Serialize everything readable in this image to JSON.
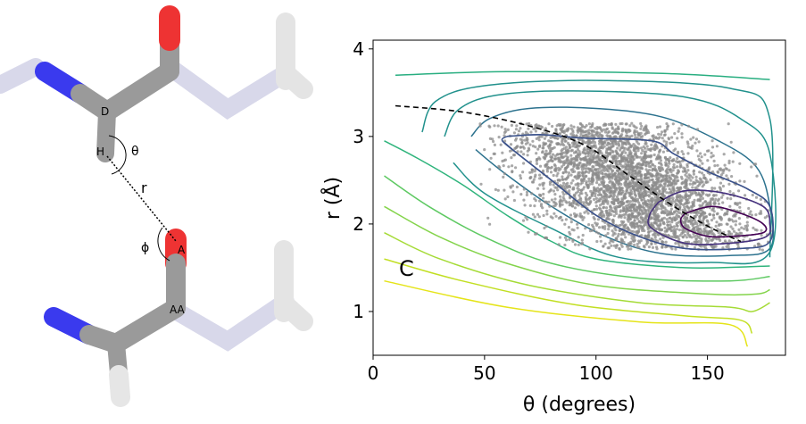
{
  "molecule": {
    "atom_labels": [
      "D",
      "H",
      "A",
      "AA"
    ],
    "geometry_labels": {
      "theta": "θ",
      "phi": "ϕ",
      "r": "r"
    },
    "colors": {
      "carbon": "#9a9a9a",
      "nitrogen": "#3a3aee",
      "oxygen": "#ee3333",
      "hydrogen": "#e6e6e6",
      "bond_faded": "#d8d8ea"
    }
  },
  "chart_data": {
    "type": "contour",
    "xlabel": "θ (degrees)",
    "ylabel": "r (Å)",
    "xlim": [
      0,
      185
    ],
    "ylim": [
      0.5,
      4.1
    ],
    "xticks": [
      0,
      50,
      100,
      150
    ],
    "yticks": [
      1,
      2,
      3,
      4
    ],
    "grid": false,
    "colormap": "viridis",
    "annotation": "C",
    "contour_levels": [
      {
        "color": "#440154",
        "points": [
          [
            140,
            2.12
          ],
          [
            152,
            2.2
          ],
          [
            165,
            2.12
          ],
          [
            175,
            2.0
          ],
          [
            175,
            1.9
          ],
          [
            162,
            1.86
          ],
          [
            150,
            1.86
          ],
          [
            140,
            1.95
          ],
          [
            138,
            2.05
          ]
        ]
      },
      {
        "color": "#46327e",
        "points": [
          [
            128,
            2.25
          ],
          [
            140,
            2.38
          ],
          [
            158,
            2.35
          ],
          [
            175,
            2.2
          ],
          [
            178,
            2.0
          ],
          [
            176,
            1.85
          ],
          [
            160,
            1.78
          ],
          [
            140,
            1.78
          ],
          [
            125,
            1.95
          ],
          [
            124,
            2.1
          ]
        ]
      },
      {
        "color": "#3b528b",
        "points": [
          [
            60,
            3.0
          ],
          [
            75,
            3.02
          ],
          [
            95,
            2.98
          ],
          [
            125,
            2.95
          ],
          [
            135,
            2.8
          ],
          [
            150,
            2.6
          ],
          [
            168,
            2.4
          ],
          [
            178,
            2.2
          ],
          [
            178,
            1.8
          ],
          [
            165,
            1.72
          ],
          [
            140,
            1.72
          ],
          [
            120,
            1.85
          ],
          [
            100,
            2.1
          ],
          [
            80,
            2.5
          ],
          [
            65,
            2.8
          ],
          [
            58,
            2.95
          ]
        ]
      },
      {
        "color": "#2c728e",
        "points": [
          [
            44,
            3.0
          ],
          [
            52,
            3.2
          ],
          [
            70,
            3.32
          ],
          [
            100,
            3.32
          ],
          [
            130,
            3.22
          ],
          [
            155,
            2.95
          ],
          [
            172,
            2.65
          ],
          [
            178,
            2.2
          ],
          [
            178,
            1.72
          ],
          [
            160,
            1.64
          ],
          [
            130,
            1.66
          ],
          [
            105,
            1.85
          ],
          [
            80,
            2.2
          ],
          [
            58,
            2.6
          ],
          [
            46,
            2.85
          ]
        ]
      },
      {
        "color": "#21918c",
        "points": [
          [
            32,
            3.0
          ],
          [
            38,
            3.3
          ],
          [
            55,
            3.47
          ],
          [
            90,
            3.52
          ],
          [
            140,
            3.45
          ],
          [
            165,
            3.2
          ],
          [
            178,
            2.8
          ],
          [
            178,
            1.68
          ],
          [
            150,
            1.56
          ],
          [
            110,
            1.62
          ],
          [
            80,
            1.95
          ],
          [
            50,
            2.35
          ],
          [
            36,
            2.7
          ]
        ]
      },
      {
        "color": "#21918c",
        "points": [
          [
            22,
            3.05
          ],
          [
            28,
            3.4
          ],
          [
            50,
            3.58
          ],
          [
            100,
            3.64
          ],
          [
            160,
            3.55
          ],
          [
            178,
            3.2
          ],
          [
            178,
            1.62
          ]
        ]
      },
      {
        "color": "#28ae80",
        "points": [
          [
            10,
            3.7
          ],
          [
            60,
            3.74
          ],
          [
            130,
            3.72
          ],
          [
            178,
            3.65
          ]
        ]
      },
      {
        "color": "#2fb47c",
        "points": [
          [
            5,
            2.95
          ],
          [
            20,
            2.75
          ],
          [
            40,
            2.45
          ],
          [
            60,
            2.1
          ],
          [
            80,
            1.8
          ],
          [
            100,
            1.6
          ],
          [
            140,
            1.5
          ],
          [
            178,
            1.52
          ]
        ]
      },
      {
        "color": "#5ec962",
        "points": [
          [
            5,
            2.55
          ],
          [
            25,
            2.2
          ],
          [
            50,
            1.85
          ],
          [
            80,
            1.55
          ],
          [
            120,
            1.38
          ],
          [
            160,
            1.35
          ],
          [
            178,
            1.4
          ]
        ]
      },
      {
        "color": "#84d44b",
        "points": [
          [
            5,
            2.2
          ],
          [
            30,
            1.85
          ],
          [
            60,
            1.55
          ],
          [
            100,
            1.3
          ],
          [
            150,
            1.2
          ],
          [
            172,
            1.2
          ],
          [
            178,
            1.25
          ]
        ]
      },
      {
        "color": "#a5db36",
        "points": [
          [
            5,
            1.9
          ],
          [
            30,
            1.6
          ],
          [
            70,
            1.3
          ],
          [
            120,
            1.1
          ],
          [
            160,
            1.05
          ],
          [
            170,
            1.0
          ],
          [
            178,
            1.1
          ]
        ]
      },
      {
        "color": "#c2df23",
        "points": [
          [
            5,
            1.6
          ],
          [
            40,
            1.35
          ],
          [
            90,
            1.08
          ],
          [
            140,
            0.95
          ],
          [
            165,
            0.9
          ],
          [
            170,
            0.75
          ]
        ]
      },
      {
        "color": "#e5e419",
        "points": [
          [
            5,
            1.35
          ],
          [
            60,
            1.05
          ],
          [
            120,
            0.88
          ],
          [
            160,
            0.85
          ],
          [
            168,
            0.6
          ]
        ]
      }
    ],
    "ridge_line": {
      "color": "#000000",
      "style": "dashed",
      "points": [
        [
          10,
          3.35
        ],
        [
          40,
          3.28
        ],
        [
          70,
          3.12
        ],
        [
          95,
          2.9
        ],
        [
          115,
          2.55
        ],
        [
          135,
          2.2
        ],
        [
          152,
          1.95
        ],
        [
          165,
          1.8
        ]
      ]
    },
    "scatter": {
      "color": "#8c8c8c",
      "count": 4500,
      "center": [
        115,
        2.45
      ],
      "spread": [
        28,
        0.45
      ]
    }
  }
}
